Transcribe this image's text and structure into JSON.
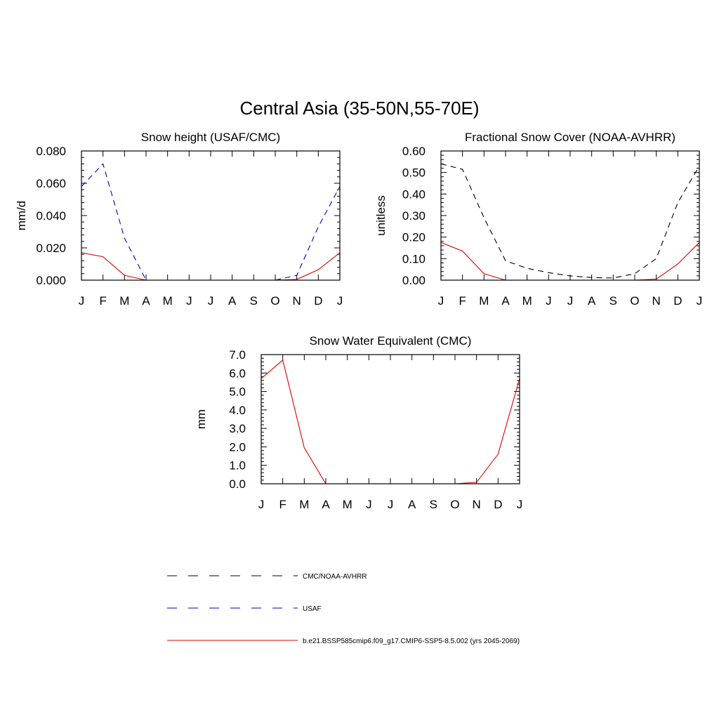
{
  "figure_title": "Central Asia (35-50N,55-70E)",
  "months": [
    "J",
    "F",
    "M",
    "A",
    "M",
    "J",
    "J",
    "A",
    "S",
    "O",
    "N",
    "D",
    "J"
  ],
  "colors": {
    "obs": "#000000",
    "usaf": "#0000cc",
    "model": "#e00000"
  },
  "legend": [
    {
      "label": "CMC/NOAA-AVHRR",
      "color": "#000000",
      "style": "dashed"
    },
    {
      "label": "USAF",
      "color": "#0000cc",
      "style": "dashed"
    },
    {
      "label": "b.e21.BSSP585cmip6.f09_g17.CMIP6-SSP5-8.5.002 (yrs 2045-2069)",
      "color": "#e00000",
      "style": "solid"
    }
  ],
  "chart_data": [
    {
      "type": "line",
      "title": "Snow height (USAF/CMC)",
      "ylabel": "mm/d",
      "ylim": [
        0,
        0.08
      ],
      "yticks": [
        "0.000",
        "0.020",
        "0.040",
        "0.060",
        "0.080"
      ],
      "series": [
        {
          "name": "USAF",
          "style": "dashed",
          "color": "#0000cc",
          "values": [
            0.058,
            0.072,
            0.026,
            0.0,
            0.0,
            0.0,
            0.0,
            0.0,
            0.0,
            0.0,
            0.003,
            0.033,
            0.058
          ]
        },
        {
          "name": "b.e21.BSSP585cmip6.f09_g17.CMIP6-SSP5-8.5.002 (yrs 2045-2069)",
          "style": "solid",
          "color": "#e00000",
          "values": [
            0.017,
            0.0145,
            0.003,
            0.0,
            0.0,
            0.0,
            0.0,
            0.0,
            0.0,
            0.0,
            0.0005,
            0.0065,
            0.017
          ]
        }
      ]
    },
    {
      "type": "line",
      "title": "Fractional Snow Cover (NOAA-AVHRR)",
      "ylabel": "unitless",
      "ylim": [
        0,
        0.6
      ],
      "yticks": [
        "0.00",
        "0.10",
        "0.20",
        "0.30",
        "0.40",
        "0.50",
        "0.60"
      ],
      "series": [
        {
          "name": "CMC/NOAA-AVHRR",
          "style": "dashed",
          "color": "#000000",
          "values": [
            0.54,
            0.515,
            0.29,
            0.09,
            0.055,
            0.035,
            0.02,
            0.012,
            0.01,
            0.03,
            0.1,
            0.36,
            0.53
          ]
        },
        {
          "name": "b.e21.BSSP585cmip6.f09_g17.CMIP6-SSP5-8.5.002 (yrs 2045-2069)",
          "style": "solid",
          "color": "#e00000",
          "values": [
            0.175,
            0.135,
            0.03,
            0.0,
            0.0,
            0.0,
            0.0,
            0.0,
            0.0,
            0.0,
            0.005,
            0.075,
            0.175
          ]
        }
      ]
    },
    {
      "type": "line",
      "title": "Snow Water Equivalent (CMC)",
      "ylabel": "mm",
      "ylim": [
        0,
        7
      ],
      "yticks": [
        "0.0",
        "1.0",
        "2.0",
        "3.0",
        "4.0",
        "5.0",
        "6.0",
        "7.0"
      ],
      "series": [
        {
          "name": "CMC/NOAA-AVHRR",
          "style": "dashed",
          "color": "#000000",
          "values": [
            0,
            0,
            0,
            0,
            0,
            0,
            0,
            0,
            0,
            0,
            0,
            0,
            0
          ]
        },
        {
          "name": "b.e21.BSSP585cmip6.f09_g17.CMIP6-SSP5-8.5.002 (yrs 2045-2069)",
          "style": "solid",
          "color": "#e00000",
          "values": [
            5.7,
            6.7,
            1.95,
            0.0,
            0.0,
            0.0,
            0.0,
            0.0,
            0.0,
            0.0,
            0.08,
            1.6,
            5.7
          ]
        }
      ]
    }
  ]
}
